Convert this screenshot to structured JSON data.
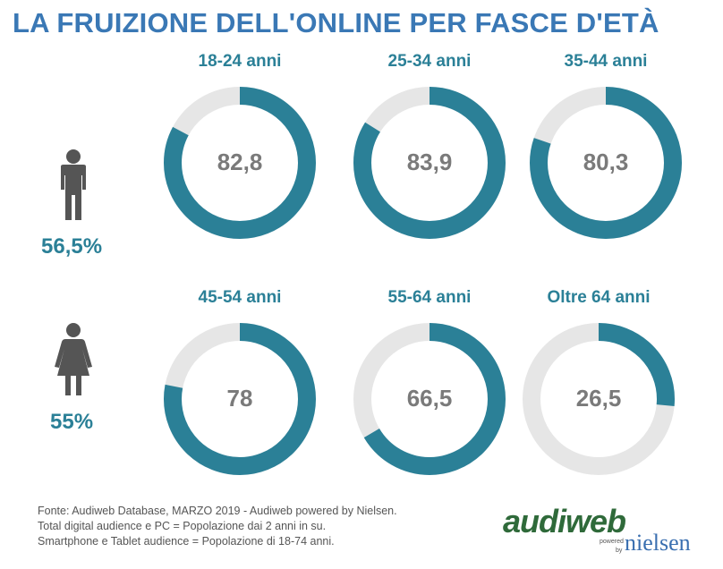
{
  "title": "LA FRUIZIONE DELL'ONLINE PER FASCE D'ETÀ",
  "colors": {
    "accent": "#2b8097",
    "track": "#e6e6e6",
    "title": "#3a78b5",
    "value_text": "#7a7a7a",
    "figure": "#555555"
  },
  "gender": {
    "male": {
      "icon": "male-icon",
      "percent": "56,5%"
    },
    "female": {
      "icon": "female-icon",
      "percent": "55%"
    }
  },
  "chart_data": {
    "type": "donut",
    "unit": "%",
    "categories": [
      "18-24 anni",
      "25-34 anni",
      "35-44 anni",
      "45-54 anni",
      "55-64 anni",
      "Oltre 64 anni"
    ],
    "values": [
      82.8,
      83.9,
      80.3,
      78,
      66.5,
      26.5
    ],
    "value_labels": [
      "82,8",
      "83,9",
      "80,3",
      "78",
      "66,5",
      "26,5"
    ]
  },
  "footnote": {
    "line1": "Fonte: Audiweb Database, MARZO 2019 - Audiweb powered by Nielsen.",
    "line2": "Total digital audience e PC = Popolazione dai 2 anni in su.",
    "line3": "Smartphone e Tablet audience = Popolazione di 18-74 anni."
  },
  "logo": {
    "brand": "audiweb",
    "powered": "powered",
    "by": "by",
    "partner": "nielsen"
  }
}
